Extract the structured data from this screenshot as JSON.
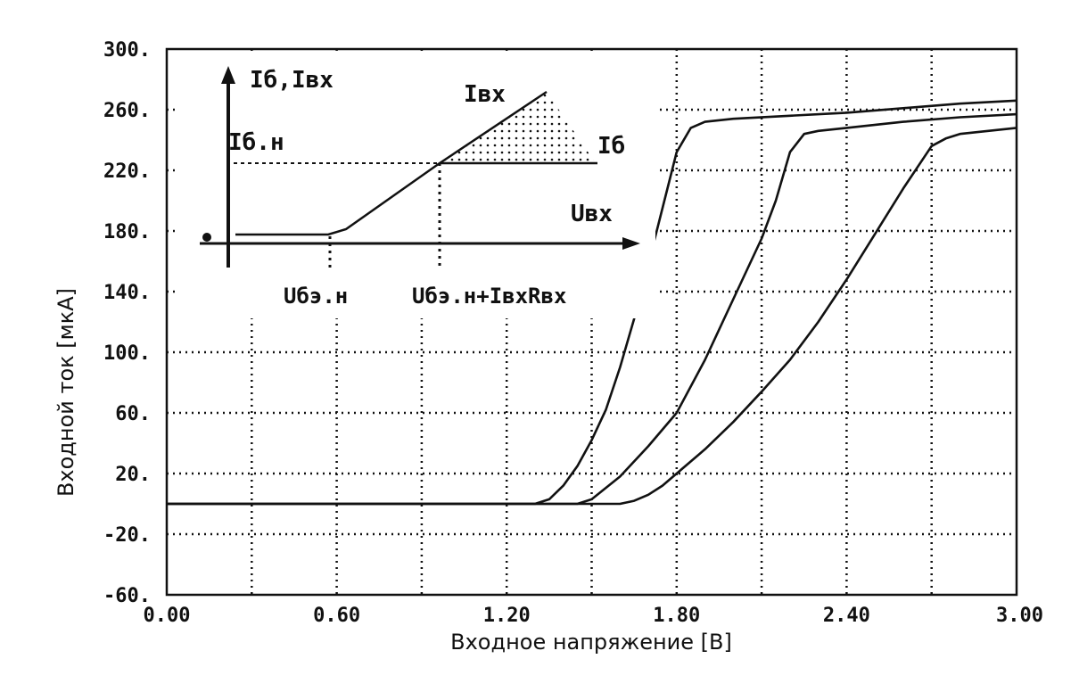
{
  "chart_data": {
    "type": "line",
    "title": "",
    "xlabel": "Входное напряжение [B]",
    "ylabel": "Входной ток [мкА]",
    "xlim": [
      0,
      3
    ],
    "ylim": [
      -60,
      300
    ],
    "x_ticks": [
      0,
      0.6,
      1.2,
      1.8,
      2.4,
      3.0
    ],
    "x_tick_labels": [
      "0.00",
      "0.60",
      "1.20",
      "1.80",
      "2.40",
      "3.00"
    ],
    "y_ticks": [
      300,
      260,
      220,
      180,
      140,
      100,
      60,
      20,
      -20,
      -60
    ],
    "y_tick_labels": [
      "300.",
      "260.",
      "220.",
      "180.",
      "140.",
      "100.",
      "60.",
      "20.",
      "-20.",
      "-60."
    ],
    "grid": true,
    "grid_style": "dotted",
    "x_minor_gridlines": [
      0.3,
      0.9,
      1.5,
      2.1,
      2.7
    ],
    "series": [
      {
        "x": [
          0,
          1.3,
          1.35,
          1.4,
          1.45,
          1.5,
          1.55,
          1.6,
          1.65,
          1.7,
          1.75,
          1.8,
          1.85,
          1.9,
          2.0,
          2.2,
          2.4,
          2.6,
          2.8,
          3.0
        ],
        "values": [
          0,
          0,
          3,
          12,
          25,
          42,
          62,
          90,
          122,
          158,
          195,
          232,
          248,
          252,
          254,
          256,
          258,
          261,
          264,
          266
        ]
      },
      {
        "x": [
          0,
          1.45,
          1.5,
          1.6,
          1.7,
          1.8,
          1.9,
          2.0,
          2.1,
          2.15,
          2.2,
          2.25,
          2.3,
          2.4,
          2.6,
          2.8,
          3.0
        ],
        "values": [
          0,
          0,
          3,
          18,
          38,
          60,
          95,
          135,
          175,
          200,
          232,
          244,
          246,
          248,
          252,
          255,
          257
        ]
      },
      {
        "x": [
          0,
          1.5,
          1.6,
          1.65,
          1.7,
          1.75,
          1.8,
          1.9,
          2.0,
          2.1,
          2.2,
          2.3,
          2.4,
          2.5,
          2.6,
          2.7,
          2.75,
          2.8,
          2.9,
          3.0
        ],
        "values": [
          0,
          0,
          0,
          2,
          6,
          12,
          20,
          36,
          54,
          74,
          95,
          120,
          148,
          178,
          208,
          236,
          241,
          244,
          246,
          248
        ]
      }
    ],
    "inset": {
      "labels": {
        "y_axis": "Iб,Iвх",
        "i_bn": "Iб.н",
        "i_vx": "Iвх",
        "i_b": "Iб",
        "u_vx": "Uвх",
        "u_ben": "Uбэ.н",
        "u_sum": "Uбэ.н+IвхRвх"
      }
    }
  }
}
